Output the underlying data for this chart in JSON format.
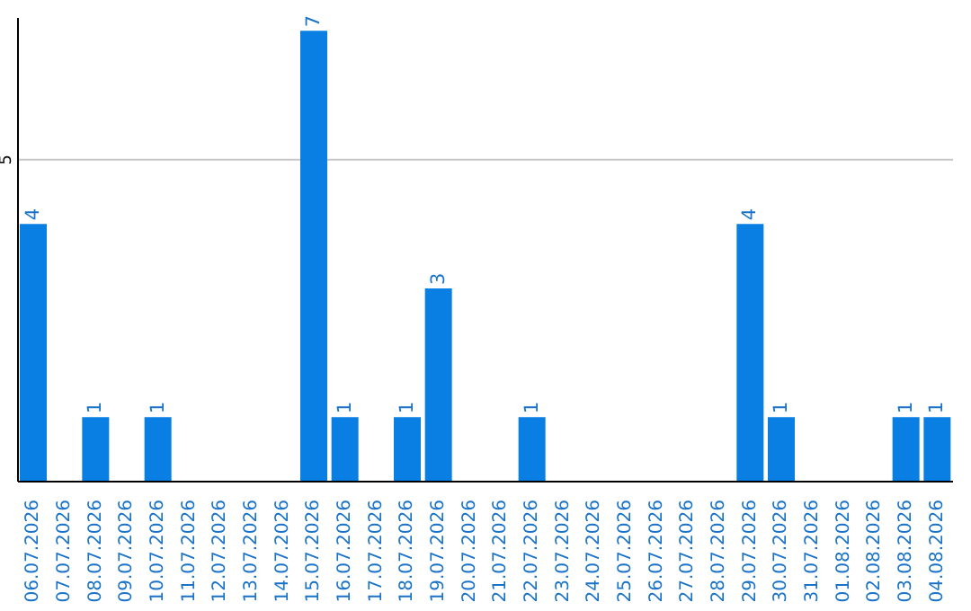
{
  "chart_data": {
    "type": "bar",
    "categories": [
      "06.07.2026",
      "07.07.2026",
      "08.07.2026",
      "09.07.2026",
      "10.07.2026",
      "11.07.2026",
      "12.07.2026",
      "13.07.2026",
      "14.07.2026",
      "15.07.2026",
      "16.07.2026",
      "17.07.2026",
      "18.07.2026",
      "19.07.2026",
      "20.07.2026",
      "21.07.2026",
      "22.07.2026",
      "23.07.2026",
      "24.07.2026",
      "25.07.2026",
      "26.07.2026",
      "27.07.2026",
      "28.07.2026",
      "29.07.2026",
      "30.07.2026",
      "31.07.2026",
      "01.08.2026",
      "02.08.2026",
      "03.08.2026",
      "04.08.2026"
    ],
    "values": [
      4,
      0,
      1,
      0,
      1,
      0,
      0,
      0,
      0,
      7,
      1,
      0,
      1,
      3,
      0,
      0,
      1,
      0,
      0,
      0,
      0,
      0,
      0,
      4,
      1,
      0,
      0,
      0,
      1,
      1
    ],
    "value_labels": [
      "4",
      null,
      "1",
      null,
      "1",
      null,
      null,
      null,
      null,
      "7",
      "1",
      null,
      "1",
      "3",
      null,
      null,
      "1",
      null,
      null,
      null,
      null,
      null,
      null,
      "4",
      "1",
      null,
      null,
      null,
      "1",
      "1"
    ],
    "color": "#0a7fe3",
    "ylim": [
      0,
      7.2
    ],
    "yticks": [
      5
    ],
    "grid": "y"
  }
}
